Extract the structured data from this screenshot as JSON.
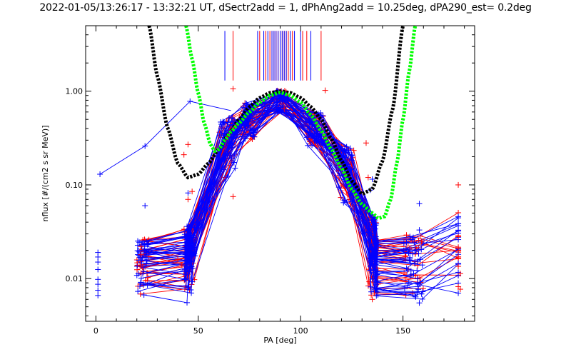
{
  "title": "2022-01-05/13:26:17 - 13:32:21 UT, dSectr2add = 1, dPhAng2add = 10.25deg, dPA290_est=   0.2deg",
  "chart_data": {
    "type": "line",
    "title": "2022-01-05/13:26:17 - 13:32:21 UT, dSectr2add = 1, dPhAng2add = 10.25deg, dPA290_est=   0.2deg",
    "xlabel": "PA [deg]",
    "ylabel": "nflux [#/(cm2 s sr MeV)]",
    "xlim": [
      -5,
      185
    ],
    "ylim": [
      0.0035,
      5.0
    ],
    "yscale": "log",
    "xticks": [
      "0",
      "50",
      "100",
      "150"
    ],
    "yticks": [
      "0.01",
      "0.10",
      "1.00"
    ],
    "grid": false,
    "legend": "none",
    "colors": {
      "red": "#ff0000",
      "blue": "#0000ff",
      "black": "#000000",
      "green": "#00ff00"
    },
    "series": [
      {
        "color": "black",
        "style": "dashed-thick",
        "x": [
          26,
          30,
          35,
          40,
          45,
          50,
          55,
          60,
          65,
          70,
          75,
          80,
          85,
          90,
          95,
          100,
          105,
          110,
          115,
          120,
          125,
          130,
          135,
          140,
          145,
          150
        ],
        "y": [
          5.0,
          1.45,
          0.41,
          0.17,
          0.12,
          0.13,
          0.17,
          0.24,
          0.35,
          0.5,
          0.68,
          0.85,
          0.96,
          1.0,
          0.96,
          0.85,
          0.68,
          0.5,
          0.31,
          0.18,
          0.11,
          0.08,
          0.09,
          0.18,
          0.65,
          5.0
        ]
      },
      {
        "color": "green",
        "style": "dashed-thick",
        "x": [
          44,
          47,
          50,
          53,
          56,
          58,
          60,
          63,
          66,
          70,
          75,
          80,
          85,
          90,
          95,
          100,
          105,
          110,
          115,
          120,
          125,
          130,
          135,
          138,
          141,
          144,
          147,
          150,
          153,
          156
        ],
        "y": [
          5.0,
          2.2,
          0.95,
          0.45,
          0.27,
          0.23,
          0.24,
          0.3,
          0.37,
          0.46,
          0.6,
          0.76,
          0.9,
          0.97,
          0.9,
          0.76,
          0.56,
          0.38,
          0.24,
          0.15,
          0.09,
          0.062,
          0.05,
          0.044,
          0.046,
          0.07,
          0.17,
          0.5,
          1.6,
          5.0
        ]
      }
    ],
    "red_points": [
      {
        "x": 45,
        "y": 0.27
      },
      {
        "x": 43,
        "y": 0.21
      },
      {
        "x": 45,
        "y": 0.07
      },
      {
        "x": 47,
        "y": 0.085
      },
      {
        "x": 67,
        "y": 1.06
      },
      {
        "x": 67,
        "y": 0.075
      },
      {
        "x": 92,
        "y": 0.65
      },
      {
        "x": 112,
        "y": 1.02
      },
      {
        "x": 132,
        "y": 0.28
      },
      {
        "x": 133,
        "y": 0.12
      },
      {
        "x": 136,
        "y": 0.007
      },
      {
        "x": 135,
        "y": 0.006
      },
      {
        "x": 159,
        "y": 0.025
      },
      {
        "x": 177,
        "y": 0.1
      },
      {
        "x": 177,
        "y": 0.028
      },
      {
        "x": 177,
        "y": 0.021
      },
      {
        "x": 177,
        "y": 0.017
      },
      {
        "x": 177,
        "y": 0.0135
      },
      {
        "x": 178,
        "y": 0.0113
      },
      {
        "x": 177,
        "y": 0.0082
      },
      {
        "x": 178,
        "y": 0.0077
      },
      {
        "x": 22,
        "y": 0.022
      },
      {
        "x": 22,
        "y": 0.018
      },
      {
        "x": 22,
        "y": 0.0135
      },
      {
        "x": 22,
        "y": 0.0115
      },
      {
        "x": 40,
        "y": 0.016
      },
      {
        "x": 42,
        "y": 0.014
      }
    ],
    "blue_points": [
      {
        "x": 2,
        "y": 0.13
      },
      {
        "x": 1,
        "y": 0.019
      },
      {
        "x": 1,
        "y": 0.017
      },
      {
        "x": 1,
        "y": 0.015
      },
      {
        "x": 1,
        "y": 0.0125
      },
      {
        "x": 1,
        "y": 0.0098
      },
      {
        "x": 1,
        "y": 0.0087
      },
      {
        "x": 1,
        "y": 0.0075
      },
      {
        "x": 1,
        "y": 0.0066
      },
      {
        "x": 24,
        "y": 0.26
      },
      {
        "x": 24,
        "y": 0.06
      },
      {
        "x": 46,
        "y": 0.78
      },
      {
        "x": 45,
        "y": 0.082
      },
      {
        "x": 134,
        "y": 0.088
      },
      {
        "x": 135,
        "y": 0.115
      },
      {
        "x": 158,
        "y": 0.063
      },
      {
        "x": 158,
        "y": 0.033
      },
      {
        "x": 158,
        "y": 0.0055
      },
      {
        "x": 23,
        "y": 0.024
      },
      {
        "x": 24,
        "y": 0.017
      }
    ],
    "vertical_markers": {
      "y_top": 4.4,
      "y_bottom": 1.3,
      "red_x": [
        67,
        80,
        83,
        85,
        86,
        87,
        88,
        89,
        90,
        91,
        92,
        93,
        94,
        96,
        101,
        103,
        110
      ],
      "blue_x": [
        63,
        79,
        82,
        84,
        86,
        87,
        88,
        89,
        90,
        91,
        92,
        93,
        95,
        97,
        100,
        105
      ]
    },
    "trace_families": {
      "red": {
        "count": 34,
        "seed": 17
      },
      "blue": {
        "count": 44,
        "seed": 91
      }
    }
  }
}
